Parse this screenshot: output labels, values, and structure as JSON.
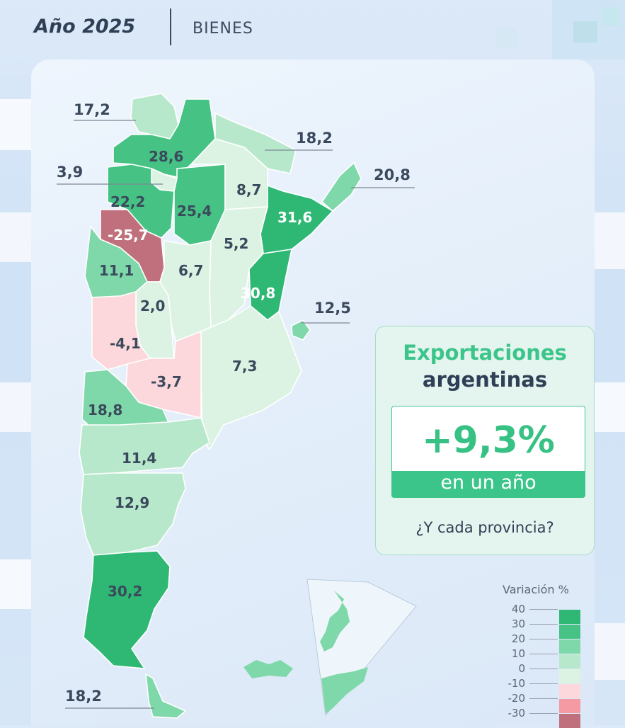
{
  "header": {
    "year": "Año 2025",
    "category": "BIENES"
  },
  "info": {
    "title_line1": "Exportaciones",
    "title_line2": "argentinas",
    "percent": "+9,3%",
    "sub": "en un año",
    "question": "¿Y cada provincia?"
  },
  "provinces": {
    "jujuy": "17,2",
    "salta": "28,6",
    "formosa": "18,2",
    "tucuman": "3,9",
    "misiones": "20,8",
    "catamarca": "22,2",
    "santiago": "25,4",
    "chaco": "8,7",
    "corrientes": "31,6",
    "la_rioja": "-25,7",
    "santa_fe": "5,2",
    "san_juan": "11,1",
    "cordoba": "6,7",
    "entre_rios": "30,8",
    "caba": "12,5",
    "san_luis": "2,0",
    "mendoza": "-4,1",
    "buenos_aires": "7,3",
    "la_pampa": "-3,7",
    "neuquen": "18,8",
    "rio_negro": "11,4",
    "chubut": "12,9",
    "santa_cruz": "30,2",
    "tierra_del_fuego": "18,2"
  },
  "legend": {
    "title": "Variación %",
    "labels": [
      "40",
      "30",
      "20",
      "10",
      "0",
      "-10",
      "-20",
      "-30"
    ],
    "colors": [
      "#2fb874",
      "#46c384",
      "#7fd8a9",
      "#b7e8cb",
      "#dcf3e4",
      "#fcd7db",
      "#f59aa2",
      "#c0707c"
    ]
  },
  "colors": {
    "accent_green": "#3cc58a",
    "dark_text": "#2f3f55",
    "negative_strong": "#c0707c",
    "negative_light": "#fcd7db"
  }
}
